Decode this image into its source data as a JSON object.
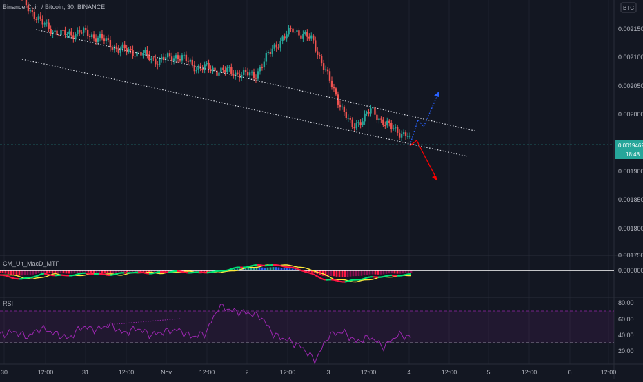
{
  "header": {
    "symbol_title": "Binance Coin / Bitcoin, 30, BINANCE",
    "currency_badge": "BTC"
  },
  "price_axis": {
    "ticks": [
      "0.0021500",
      "0.0021000",
      "0.0020500",
      "0.0020000",
      "0.0019000",
      "0.0018500",
      "0.0018000",
      "0.0017500"
    ],
    "current_price": "0.0019462",
    "countdown": "18:48"
  },
  "macd_pane": {
    "title": "CM_Ult_MacD_MTF",
    "tick": "0.0000000"
  },
  "rsi_pane": {
    "title": "RSI",
    "ticks": [
      "80.00",
      "60.00",
      "40.00",
      "20.00"
    ]
  },
  "time_axis": {
    "ticks": [
      "30",
      "12:00",
      "31",
      "12:00",
      "Nov",
      "12:00",
      "2",
      "12:00",
      "3",
      "12:00",
      "4",
      "12:00",
      "5",
      "12:00",
      "6",
      "12:00"
    ]
  },
  "colors": {
    "background": "#131722",
    "up_candle": "#26a69a",
    "down_candle": "#ef5350",
    "rsi_line": "#9c27b0",
    "projection_up": "#2962ff",
    "projection_down": "#ff0000",
    "current_price_label": "#26a69a"
  },
  "chart_data": [
    {
      "type": "candlestick",
      "title": "Binance Coin / Bitcoin, 30, BINANCE",
      "series": [
        {
          "name": "price",
          "x": [
            "30 00:00",
            "30 06:00",
            "30 12:00",
            "30 18:00",
            "31 00:00",
            "31 06:00",
            "31 12:00",
            "31 18:00",
            "Nov 00:00",
            "Nov 06:00",
            "Nov 12:00",
            "Nov 18:00",
            "2 00:00",
            "2 06:00",
            "2 12:00",
            "2 18:00",
            "3 00:00",
            "3 06:00",
            "3 12:00",
            "3 18:00",
            "4 00:00"
          ],
          "values": [
            0.00218,
            0.00214,
            0.00212,
            0.002125,
            0.002115,
            0.002095,
            0.00209,
            0.002075,
            0.002085,
            0.002065,
            0.00206,
            0.002055,
            0.00205,
            0.0021,
            0.00213,
            0.00211,
            0.00203,
            0.00196,
            0.00199,
            0.00196,
            0.001946
          ]
        }
      ],
      "ylim": [
        0.00174,
        0.00218
      ],
      "current_price": 0.0019462
    },
    {
      "type": "line",
      "title": "CM_Ult_MacD_MTF",
      "series": [
        {
          "name": "macd",
          "values": [
            -1e-06,
            -2e-06,
            -8e-07,
            -1.2e-06,
            -6e-07,
            -1e-06,
            -4e-07,
            -6e-07,
            -2e-07,
            -5e-07,
            -3e-07,
            6e-07,
            1.2e-06,
            1.1e-06,
            0.0,
            -2e-06,
            -2.5e-06,
            -1.6e-06,
            -1.2e-06,
            -9e-07
          ]
        }
      ]
    },
    {
      "type": "line",
      "title": "RSI",
      "series": [
        {
          "name": "RSI",
          "values": [
            44,
            48,
            42,
            52,
            46,
            40,
            54,
            50,
            56,
            46,
            52,
            44,
            48,
            50,
            42,
            46,
            78,
            72,
            70,
            66,
            44,
            38,
            30,
            14,
            44,
            48,
            36,
            42,
            30,
            44,
            42
          ]
        }
      ],
      "ylim": [
        10,
        88
      ],
      "bands": [
        30,
        70
      ]
    }
  ]
}
